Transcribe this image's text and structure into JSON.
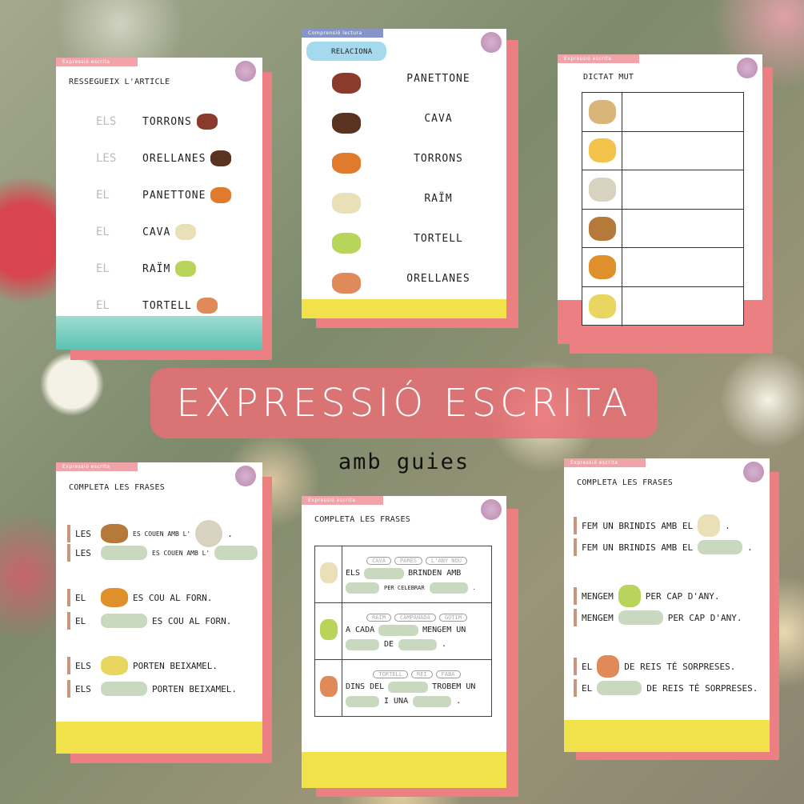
{
  "banner": {
    "title": "EXPRESSIÓ ESCRITA",
    "subtitle": "amb guies"
  },
  "colors": {
    "card_shadow": "#ec7f82",
    "blank": "#c9d9bf",
    "banner": "#e9767c",
    "tag_pink": "#f0a3a8",
    "tag_blue": "#8794c9",
    "teal": "#5cc2b3",
    "yellow": "#f1e14a"
  },
  "card1": {
    "tag": "Expressió escrita",
    "title": "RESSEGUEIX L'ARTICLE",
    "rows": [
      {
        "article": "ELS",
        "word": "TORRONS",
        "icon": "torrons-icon"
      },
      {
        "article": "LES",
        "word": "ORELLANES",
        "icon": "orellanes-icon"
      },
      {
        "article": "EL",
        "word": "PANETTONE",
        "icon": "panettone-icon"
      },
      {
        "article": "EL",
        "word": "CAVA",
        "icon": "cava-glasses-icon"
      },
      {
        "article": "EL",
        "word": "RAÏM",
        "icon": "grapes-icon"
      },
      {
        "article": "EL",
        "word": "TORTELL",
        "icon": "tortell-icon"
      }
    ]
  },
  "card2": {
    "tag": "Comprensió lectura",
    "title": "RELACIONA",
    "icons": [
      "torrons-icon",
      "orellanes-icon",
      "panettone-icon",
      "cava-glasses-icon",
      "grapes-icon",
      "tortell-icon"
    ],
    "words": [
      "PANETTONE",
      "CAVA",
      "TORRONS",
      "RAÏM",
      "TORTELL",
      "ORELLANES"
    ]
  },
  "card3": {
    "tag": "Expressió escrita",
    "title": "DICTAT MUT",
    "icons": [
      "neules-icon",
      "crackers-icon",
      "soup-icon",
      "panellets-icon",
      "turkey-icon",
      "canelons-icon"
    ]
  },
  "card4": {
    "tag": "Expressió escrita",
    "title": "COMPLETA LES FRASES",
    "groups": [
      {
        "a": "LES",
        "b": "ES COUEN AMB L'",
        "end": ".",
        "icon": "panellets-icon",
        "icon2": "soup-icon"
      },
      {
        "a": "EL",
        "b": "ES COU AL FORN.",
        "end": "",
        "icon": "turkey-icon"
      },
      {
        "a": "ELS",
        "b": "PORTEN BEIXAMEL.",
        "end": "",
        "icon": "canelons-icon"
      }
    ]
  },
  "card5": {
    "tag": "Expressió escrita",
    "title": "COMPLETA LES FRASES",
    "rows": [
      {
        "icon": "cava-glasses-icon",
        "options": [
          "CAVA",
          "PARES",
          "L'ANY NOU"
        ],
        "l1a": "ELS",
        "l1b": "BRINDEN AMB",
        "l2": "PER CELEBRAR",
        "end": "."
      },
      {
        "icon": "grapes-icon",
        "options": [
          "RAÏM",
          "CAMPANADA",
          "GOTIM"
        ],
        "l1a": "A CADA",
        "l1b": "MENGEM UN",
        "l2": "DE",
        "end": "."
      },
      {
        "icon": "tortell-icon",
        "options": [
          "TORTELL",
          "REI",
          "FABA"
        ],
        "l1a": "DINS DEL",
        "l1b": "TROBEM UN",
        "l2": "I UNA",
        "end": "."
      }
    ]
  },
  "card6": {
    "tag": "Expressió escrita",
    "title": "COMPLETA LES FRASES",
    "groups": [
      {
        "a": "FEM UN BRINDIS AMB EL",
        "b": ".",
        "icon": "cava-glasses-icon"
      },
      {
        "a": "MENGEM",
        "b": "PER CAP D'ANY.",
        "icon": "grapes-icon"
      },
      {
        "a": "EL",
        "b": "DE REIS TÉ SORPRESES.",
        "icon": "tortell-icon"
      }
    ]
  }
}
